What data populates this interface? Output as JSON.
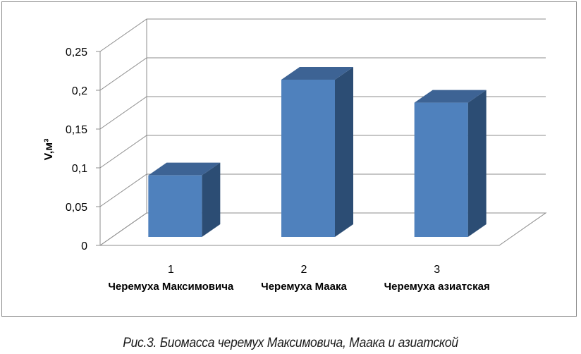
{
  "chart_data": {
    "type": "bar",
    "style": "3d-column",
    "ylabel": "V,м³",
    "ylim": [
      0,
      0.25
    ],
    "yticks": [
      "0",
      "0,05",
      "0,1",
      "0,15",
      "0,2",
      "0,25"
    ],
    "ytick_values": [
      0,
      0.05,
      0.1,
      0.15,
      0.2,
      0.25
    ],
    "grid": true,
    "categories": [
      {
        "number": "1",
        "name": "Черемуха Максимовича"
      },
      {
        "number": "2",
        "name": "Черемуха Маака"
      },
      {
        "number": "3",
        "name": "Черемуха азиатская"
      }
    ],
    "values": [
      0.083,
      0.212,
      0.181
    ],
    "colors": {
      "front": "#4f81bd",
      "top": "#3d6394",
      "side": "#2c4d74",
      "grid": "#8c8c8c"
    }
  },
  "caption": "Рис.3. Биомасса черемух Максимовича, Маака и азиатской"
}
